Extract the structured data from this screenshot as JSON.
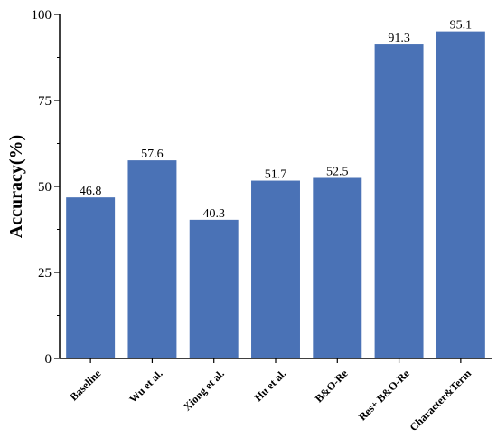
{
  "chart_data": {
    "type": "bar",
    "title": "",
    "xlabel": "",
    "ylabel": "Accuracy(%)",
    "ylim": [
      0,
      100
    ],
    "yticks": [
      0,
      25,
      50,
      75,
      100
    ],
    "categories": [
      "Baseline",
      "Wu et al.",
      "Xiong et al.",
      "Hu et al.",
      "B&O-Re",
      "Res+ B&O-Re",
      "Character&Term"
    ],
    "values": [
      46.8,
      57.6,
      40.3,
      51.7,
      52.5,
      91.3,
      95.1
    ],
    "value_labels": [
      "46.8",
      "57.6",
      "40.3",
      "51.7",
      "52.5",
      "91.3",
      "95.1"
    ],
    "bar_color": "#4a72b6",
    "grid": false,
    "legend": "none"
  }
}
